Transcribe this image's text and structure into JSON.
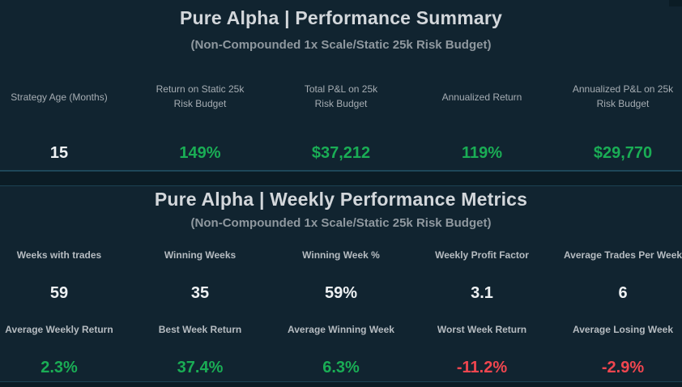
{
  "summary": {
    "title": "Pure Alpha | Performance Summary",
    "subtitle": "(Non-Compounded 1x Scale/Static 25k Risk Budget)",
    "metrics": [
      {
        "label_line1": "Strategy Age (Months)",
        "label_line2": "",
        "value": "15",
        "color": "#eef1f3"
      },
      {
        "label_line1": "Return on Static 25k",
        "label_line2": "Risk Budget",
        "value": "149%",
        "color": "#1aad55"
      },
      {
        "label_line1": "Total P&L on 25k",
        "label_line2": "Risk Budget",
        "value": "$37,212",
        "color": "#1aad55"
      },
      {
        "label_line1": "Annualized Return",
        "label_line2": "",
        "value": "119%",
        "color": "#1aad55"
      },
      {
        "label_line1": "Annualized P&L on 25k",
        "label_line2": "Risk Budget",
        "value": "$29,770",
        "color": "#1aad55"
      }
    ]
  },
  "weekly": {
    "title": "Pure Alpha | Weekly Performance Metrics",
    "subtitle": "(Non-Compounded 1x Scale/Static 25k Risk Budget)",
    "row1": [
      {
        "label": "Weeks with trades",
        "value": "59"
      },
      {
        "label": "Winning Weeks",
        "value": "35"
      },
      {
        "label": "Winning Week %",
        "value": "59%"
      },
      {
        "label": "Weekly Profit Factor",
        "value": "3.1"
      },
      {
        "label": "Average Trades Per Week",
        "value": "6"
      }
    ],
    "row2": [
      {
        "label": "Average Weekly Return",
        "value": "2.3%"
      },
      {
        "label": "Best Week Return",
        "value": "37.4%"
      },
      {
        "label": "Average Winning Week",
        "value": "6.3%"
      },
      {
        "label": "Worst Week Return",
        "value": "-11.2%"
      },
      {
        "label": "Average Losing Week",
        "value": "-2.9%"
      }
    ]
  },
  "colors": {
    "background": "#112430",
    "positive": "#1aad55",
    "negative": "#f0464f",
    "neutral": "#eef1f3"
  }
}
